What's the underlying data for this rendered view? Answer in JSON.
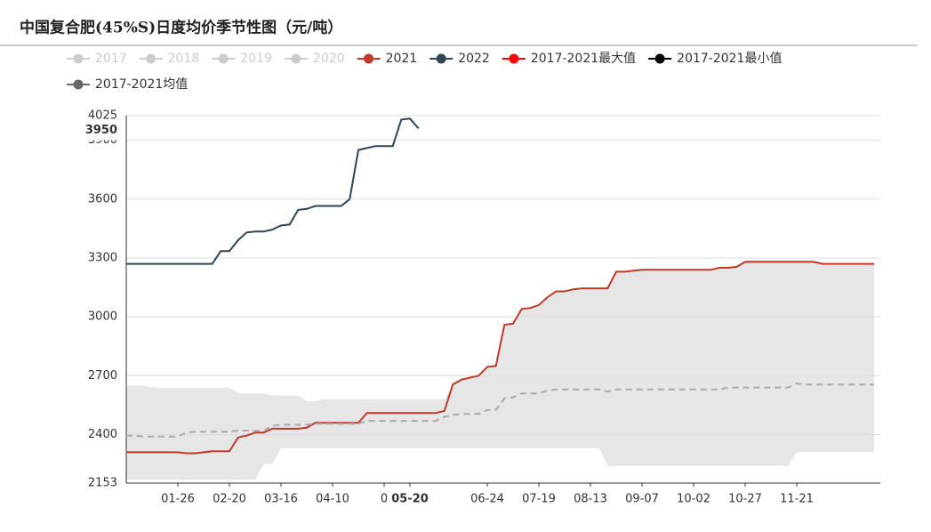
{
  "chart_data": {
    "type": "line",
    "title": "中国复合肥(45%S)日度均价季节性图（元/吨）",
    "categories": [
      null,
      null,
      null,
      null,
      null,
      null,
      "01-26",
      null,
      null,
      null,
      null,
      null,
      "02-20",
      null,
      null,
      null,
      null,
      null,
      "03-16",
      null,
      null,
      null,
      null,
      null,
      "04-10",
      null,
      null,
      null,
      null,
      null,
      "0",
      null,
      null,
      "05-20",
      null,
      null,
      null,
      null,
      null,
      null,
      null,
      null,
      "06-24",
      null,
      null,
      null,
      null,
      null,
      "07-19",
      null,
      null,
      null,
      null,
      null,
      "08-13",
      null,
      null,
      null,
      null,
      null,
      "09-07",
      null,
      null,
      null,
      null,
      null,
      "10-02",
      null,
      null,
      null,
      null,
      null,
      "10-27",
      null,
      null,
      null,
      null,
      null,
      "11-21",
      null,
      null,
      null,
      null,
      null,
      null,
      null,
      null,
      null
    ],
    "hidden_series": [
      {
        "name": "2017",
        "color": "#cccccc"
      },
      {
        "name": "2018",
        "color": "#cccccc"
      },
      {
        "name": "2019",
        "color": "#cccccc"
      },
      {
        "name": "2020",
        "color": "#cccccc"
      }
    ],
    "series": [
      {
        "name": "2021",
        "color": "#c0392b",
        "style": "line",
        "values": [
          2310,
          2310,
          2310,
          2310,
          2310,
          2310,
          2310,
          2305,
          2305,
          2310,
          2315,
          2315,
          2315,
          2385,
          2395,
          2410,
          2410,
          2430,
          2430,
          2430,
          2430,
          2435,
          2460,
          2460,
          2460,
          2460,
          2460,
          2460,
          2510,
          2510,
          2510,
          2510,
          2510,
          2510,
          2510,
          2510,
          2510,
          2520,
          2655,
          2680,
          2690,
          2700,
          2745,
          2750,
          2960,
          2965,
          3040,
          3045,
          3060,
          3100,
          3130,
          3130,
          3140,
          3145,
          3145,
          3145,
          3145,
          3230,
          3230,
          3235,
          3240,
          3240,
          3240,
          3240,
          3240,
          3240,
          3240,
          3240,
          3240,
          3250,
          3250,
          3255,
          3280,
          3280,
          3280,
          3280,
          3280,
          3280,
          3280,
          3280,
          3280,
          3270,
          3270,
          3270,
          3270,
          3270,
          3270,
          3270
        ]
      },
      {
        "name": "2022",
        "color": "#2f4554",
        "style": "line",
        "values": [
          3270,
          3270,
          3270,
          3270,
          3270,
          3270,
          3270,
          3270,
          3270,
          3270,
          3270,
          3335,
          3335,
          3390,
          3430,
          3435,
          3435,
          3445,
          3465,
          3470,
          3545,
          3550,
          3565,
          3565,
          3565,
          3565,
          3600,
          3850,
          3860,
          3870,
          3870,
          3870,
          4005,
          4010,
          3960,
          null,
          null,
          null,
          null,
          null,
          null,
          null,
          null,
          null,
          null,
          null,
          null,
          null,
          null,
          null,
          null,
          null,
          null,
          null,
          null,
          null,
          null,
          null,
          null,
          null,
          null,
          null,
          null,
          null,
          null,
          null,
          null,
          null,
          null,
          null,
          null,
          null,
          null,
          null,
          null,
          null,
          null,
          null,
          null,
          null,
          null,
          null,
          null,
          null,
          null,
          null,
          null,
          null
        ]
      },
      {
        "name": "2017-2021最大值",
        "color": "#ff0000",
        "style": "band-top",
        "values": [
          2650,
          2650,
          2650,
          2640,
          2640,
          2640,
          2640,
          2640,
          2640,
          2640,
          2640,
          2640,
          2640,
          2610,
          2610,
          2610,
          2610,
          2600,
          2600,
          2600,
          2600,
          2570,
          2570,
          2580,
          2580,
          2580,
          2580,
          2580,
          2580,
          2580,
          2580,
          2580,
          2580,
          2580,
          2580,
          2580,
          2580,
          2580,
          2655,
          2680,
          2690,
          2700,
          2745,
          2750,
          2960,
          2965,
          3040,
          3045,
          3060,
          3100,
          3130,
          3130,
          3140,
          3145,
          3145,
          3145,
          3145,
          3230,
          3230,
          3235,
          3240,
          3240,
          3240,
          3240,
          3240,
          3240,
          3240,
          3240,
          3240,
          3250,
          3250,
          3255,
          3290,
          3290,
          3290,
          3290,
          3290,
          3290,
          3290,
          3290,
          3290,
          3270,
          3270,
          3270,
          3270,
          3270,
          3270,
          3270
        ]
      },
      {
        "name": "2017-2021最小值",
        "color": "#000000",
        "style": "band-bottom",
        "values": [
          2170,
          2170,
          2170,
          2170,
          2170,
          2170,
          2170,
          2170,
          2170,
          2170,
          2170,
          2170,
          2170,
          2170,
          2170,
          2170,
          2250,
          2250,
          2330,
          2330,
          2330,
          2330,
          2330,
          2330,
          2330,
          2330,
          2330,
          2330,
          2330,
          2330,
          2330,
          2330,
          2330,
          2330,
          2330,
          2330,
          2330,
          2330,
          2330,
          2330,
          2330,
          2330,
          2330,
          2330,
          2330,
          2330,
          2330,
          2330,
          2330,
          2330,
          2330,
          2330,
          2330,
          2330,
          2330,
          2330,
          2240,
          2240,
          2240,
          2240,
          2240,
          2240,
          2240,
          2240,
          2240,
          2240,
          2240,
          2240,
          2240,
          2240,
          2240,
          2240,
          2240,
          2240,
          2240,
          2240,
          2240,
          2240,
          2310,
          2310,
          2310,
          2310,
          2310,
          2310,
          2310,
          2310,
          2310,
          2310
        ]
      },
      {
        "name": "2017-2021均值",
        "color": "#666666",
        "style": "dashed",
        "values": [
          2395,
          2395,
          2390,
          2390,
          2390,
          2390,
          2390,
          2410,
          2415,
          2415,
          2415,
          2415,
          2415,
          2420,
          2420,
          2420,
          2420,
          2445,
          2450,
          2450,
          2450,
          2450,
          2455,
          2455,
          2455,
          2455,
          2455,
          2455,
          2470,
          2470,
          2470,
          2470,
          2470,
          2470,
          2470,
          2470,
          2470,
          2490,
          2500,
          2505,
          2505,
          2505,
          2525,
          2525,
          2585,
          2590,
          2610,
          2610,
          2610,
          2625,
          2630,
          2630,
          2630,
          2630,
          2630,
          2630,
          2620,
          2630,
          2630,
          2630,
          2630,
          2630,
          2630,
          2630,
          2630,
          2630,
          2630,
          2630,
          2630,
          2630,
          2640,
          2640,
          2640,
          2640,
          2640,
          2640,
          2640,
          2640,
          2660,
          2655,
          2655,
          2655,
          2655,
          2655,
          2655,
          2655,
          2655,
          2655
        ]
      }
    ],
    "band_color": "#e6e6e6",
    "ylim": [
      2153,
      4025
    ],
    "yticks": [
      2153,
      2400,
      2700,
      3000,
      3300,
      3600,
      3900,
      4025
    ],
    "grid": true,
    "axis_pointer": {
      "x": "05-20",
      "y": 3950
    }
  }
}
